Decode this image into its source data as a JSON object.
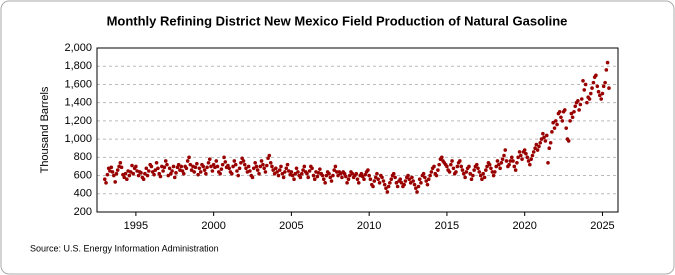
{
  "chart_data": {
    "type": "scatter",
    "title": "Monthly Refining District New Mexico Field Production of Natural Gasoline",
    "y_label": "Thousand Barrels",
    "source": "Source: U.S. Energy Information Administration",
    "color": "#990000",
    "grid": true,
    "xlim": [
      1992.5,
      2026
    ],
    "ylim": [
      200,
      2000
    ],
    "xticks": [
      1995,
      2000,
      2005,
      2010,
      2015,
      2020,
      2025
    ],
    "yticks": [
      200,
      400,
      600,
      800,
      {
        "value": 1000,
        "label": "1,000"
      },
      {
        "value": 1200,
        "label": "1,200"
      },
      {
        "value": 1400,
        "label": "1,400"
      },
      {
        "value": 1600,
        "label": "1,600"
      },
      {
        "value": 1800,
        "label": "1,800"
      },
      {
        "value": 2000,
        "label": "2,000"
      }
    ],
    "x": [
      1993,
      1993.08,
      1993.17,
      1993.25,
      1993.33,
      1993.42,
      1993.5,
      1993.58,
      1993.67,
      1993.75,
      1993.83,
      1993.92,
      1994,
      1994.08,
      1994.17,
      1994.25,
      1994.33,
      1994.42,
      1994.5,
      1994.58,
      1994.67,
      1994.75,
      1994.83,
      1994.92,
      1995,
      1995.08,
      1995.17,
      1995.25,
      1995.33,
      1995.42,
      1995.5,
      1995.58,
      1995.67,
      1995.75,
      1995.83,
      1995.92,
      1996,
      1996.08,
      1996.17,
      1996.25,
      1996.33,
      1996.42,
      1996.5,
      1996.58,
      1996.67,
      1996.75,
      1996.83,
      1996.92,
      1997,
      1997.08,
      1997.17,
      1997.25,
      1997.33,
      1997.42,
      1997.5,
      1997.58,
      1997.67,
      1997.75,
      1997.83,
      1997.92,
      1998,
      1998.08,
      1998.17,
      1998.25,
      1998.33,
      1998.42,
      1998.5,
      1998.58,
      1998.67,
      1998.75,
      1998.83,
      1998.92,
      1999,
      1999.08,
      1999.17,
      1999.25,
      1999.33,
      1999.42,
      1999.5,
      1999.58,
      1999.67,
      1999.75,
      1999.83,
      1999.92,
      2000,
      2000.08,
      2000.17,
      2000.25,
      2000.33,
      2000.42,
      2000.5,
      2000.58,
      2000.67,
      2000.75,
      2000.83,
      2000.92,
      2001,
      2001.08,
      2001.17,
      2001.25,
      2001.33,
      2001.42,
      2001.5,
      2001.58,
      2001.67,
      2001.75,
      2001.83,
      2001.92,
      2002,
      2002.08,
      2002.17,
      2002.25,
      2002.33,
      2002.42,
      2002.5,
      2002.58,
      2002.67,
      2002.75,
      2002.83,
      2002.92,
      2003,
      2003.08,
      2003.17,
      2003.25,
      2003.33,
      2003.42,
      2003.5,
      2003.58,
      2003.67,
      2003.75,
      2003.83,
      2003.92,
      2004,
      2004.08,
      2004.17,
      2004.25,
      2004.33,
      2004.42,
      2004.5,
      2004.58,
      2004.67,
      2004.75,
      2004.83,
      2004.92,
      2005,
      2005.08,
      2005.17,
      2005.25,
      2005.33,
      2005.42,
      2005.5,
      2005.58,
      2005.67,
      2005.75,
      2005.83,
      2005.92,
      2006,
      2006.08,
      2006.17,
      2006.25,
      2006.33,
      2006.42,
      2006.5,
      2006.58,
      2006.67,
      2006.75,
      2006.83,
      2006.92,
      2007,
      2007.08,
      2007.17,
      2007.25,
      2007.33,
      2007.42,
      2007.5,
      2007.58,
      2007.67,
      2007.75,
      2007.83,
      2007.92,
      2008,
      2008.08,
      2008.17,
      2008.25,
      2008.33,
      2008.42,
      2008.5,
      2008.58,
      2008.67,
      2008.75,
      2008.83,
      2008.92,
      2009,
      2009.08,
      2009.17,
      2009.25,
      2009.33,
      2009.42,
      2009.5,
      2009.58,
      2009.67,
      2009.75,
      2009.83,
      2009.92,
      2010,
      2010.08,
      2010.17,
      2010.25,
      2010.33,
      2010.42,
      2010.5,
      2010.58,
      2010.67,
      2010.75,
      2010.83,
      2010.92,
      2011,
      2011.08,
      2011.17,
      2011.25,
      2011.33,
      2011.42,
      2011.5,
      2011.58,
      2011.67,
      2011.75,
      2011.83,
      2011.92,
      2012,
      2012.08,
      2012.17,
      2012.25,
      2012.33,
      2012.42,
      2012.5,
      2012.58,
      2012.67,
      2012.75,
      2012.83,
      2012.92,
      2013,
      2013.08,
      2013.17,
      2013.25,
      2013.33,
      2013.42,
      2013.5,
      2013.58,
      2013.67,
      2013.75,
      2013.83,
      2013.92,
      2014,
      2014.08,
      2014.17,
      2014.25,
      2014.33,
      2014.42,
      2014.5,
      2014.58,
      2014.67,
      2014.75,
      2014.83,
      2014.92,
      2015,
      2015.08,
      2015.17,
      2015.25,
      2015.33,
      2015.42,
      2015.5,
      2015.58,
      2015.67,
      2015.75,
      2015.83,
      2015.92,
      2016,
      2016.08,
      2016.17,
      2016.25,
      2016.33,
      2016.42,
      2016.5,
      2016.58,
      2016.67,
      2016.75,
      2016.83,
      2016.92,
      2017,
      2017.08,
      2017.17,
      2017.25,
      2017.33,
      2017.42,
      2017.5,
      2017.58,
      2017.67,
      2017.75,
      2017.83,
      2017.92,
      2018,
      2018.08,
      2018.17,
      2018.25,
      2018.33,
      2018.42,
      2018.5,
      2018.58,
      2018.67,
      2018.75,
      2018.83,
      2018.92,
      2019,
      2019.08,
      2019.17,
      2019.25,
      2019.33,
      2019.42,
      2019.5,
      2019.58,
      2019.67,
      2019.75,
      2019.83,
      2019.92,
      2020,
      2020.08,
      2020.17,
      2020.25,
      2020.33,
      2020.42,
      2020.5,
      2020.58,
      2020.67,
      2020.75,
      2020.83,
      2020.92,
      2021,
      2021.08,
      2021.17,
      2021.25,
      2021.33,
      2021.42,
      2021.5,
      2021.58,
      2021.67,
      2021.75,
      2021.83,
      2021.92,
      2022,
      2022.08,
      2022.17,
      2022.25,
      2022.33,
      2022.42,
      2022.5,
      2022.58,
      2022.67,
      2022.75,
      2022.83,
      2022.92,
      2023,
      2023.08,
      2023.17,
      2023.25,
      2023.33,
      2023.42,
      2023.5,
      2023.58,
      2023.67,
      2023.75,
      2023.83,
      2023.92,
      2024,
      2024.08,
      2024.17,
      2024.25,
      2024.33,
      2024.42,
      2024.5,
      2024.58,
      2024.67,
      2024.75,
      2024.83,
      2024.92,
      2025,
      2025.08,
      2025.17,
      2025.25,
      2025.33,
      2025.42
    ],
    "values": [
      560,
      520,
      610,
      680,
      650,
      690,
      640,
      600,
      530,
      620,
      660,
      700,
      740,
      690,
      610,
      580,
      620,
      560,
      650,
      600,
      640,
      710,
      620,
      680,
      700,
      650,
      600,
      640,
      630,
      580,
      560,
      620,
      680,
      600,
      650,
      720,
      700,
      640,
      610,
      660,
      740,
      680,
      620,
      590,
      700,
      650,
      690,
      760,
      720,
      600,
      680,
      620,
      650,
      700,
      580,
      630,
      690,
      720,
      660,
      700,
      650,
      620,
      700,
      680,
      760,
      800,
      720,
      660,
      700,
      640,
      690,
      730,
      610,
      680,
      640,
      720,
      700,
      660,
      620,
      690,
      740,
      780,
      700,
      650,
      720,
      690,
      760,
      700,
      640,
      620,
      670,
      720,
      800,
      750,
      690,
      710,
      680,
      640,
      620,
      700,
      760,
      720,
      650,
      600,
      680,
      740,
      790,
      760,
      720,
      680,
      640,
      700,
      650,
      600,
      580,
      680,
      740,
      700,
      660,
      620,
      700,
      760,
      720,
      680,
      640,
      710,
      790,
      820,
      740,
      700,
      660,
      620,
      680,
      640,
      600,
      660,
      700,
      620,
      580,
      640,
      680,
      720,
      650,
      610,
      640,
      600,
      560,
      620,
      680,
      640,
      600,
      580,
      620,
      660,
      700,
      640,
      620,
      580,
      650,
      700,
      680,
      600,
      560,
      640,
      590,
      630,
      670,
      620,
      600,
      560,
      520,
      600,
      640,
      620,
      580,
      540,
      600,
      660,
      700,
      640,
      600,
      640,
      620,
      580,
      640,
      620,
      590,
      520,
      560,
      600,
      640,
      620,
      580,
      600,
      620,
      560,
      520,
      600,
      620,
      590,
      560,
      610,
      640,
      660,
      600,
      560,
      500,
      480,
      540,
      580,
      620,
      560,
      520,
      600,
      580,
      540,
      500,
      460,
      420,
      480,
      520,
      560,
      600,
      620,
      580,
      520,
      480,
      540,
      560,
      520,
      480,
      500,
      540,
      580,
      600,
      560,
      520,
      580,
      540,
      500,
      460,
      420,
      480,
      560,
      520,
      600,
      620,
      580,
      540,
      500,
      560,
      600,
      640,
      680,
      700,
      620,
      600,
      660,
      720,
      780,
      800,
      760,
      740,
      720,
      700,
      660,
      640,
      720,
      760,
      680,
      620,
      640,
      700,
      740,
      760,
      700,
      660,
      620,
      580,
      640,
      680,
      700,
      620,
      560,
      600,
      660,
      700,
      720,
      680,
      640,
      600,
      560,
      620,
      580,
      660,
      700,
      740,
      720,
      680,
      640,
      600,
      640,
      700,
      760,
      720,
      680,
      740,
      780,
      820,
      880,
      760,
      700,
      720,
      760,
      800,
      760,
      700,
      660,
      740,
      800,
      860,
      820,
      780,
      860,
      880,
      840,
      800,
      760,
      720,
      780,
      820,
      860,
      900,
      940,
      880,
      920,
      960,
      1000,
      1060,
      1020,
      980,
      1040,
      740,
      900,
      960,
      1080,
      1180,
      1120,
      1200,
      1160,
      1280,
      1300,
      1240,
      1200,
      1300,
      1320,
      1120,
      1000,
      980,
      1200,
      1280,
      1240,
      1300,
      1360,
      1400,
      1420,
      1320,
      1380,
      1440,
      1640,
      1540,
      1600,
      1400,
      1460,
      1440,
      1500,
      1560,
      1620,
      1680,
      1700,
      1580,
      1520,
      1480,
      1440,
      1500,
      1580,
      1620,
      1760,
      1840,
      1560
    ]
  }
}
